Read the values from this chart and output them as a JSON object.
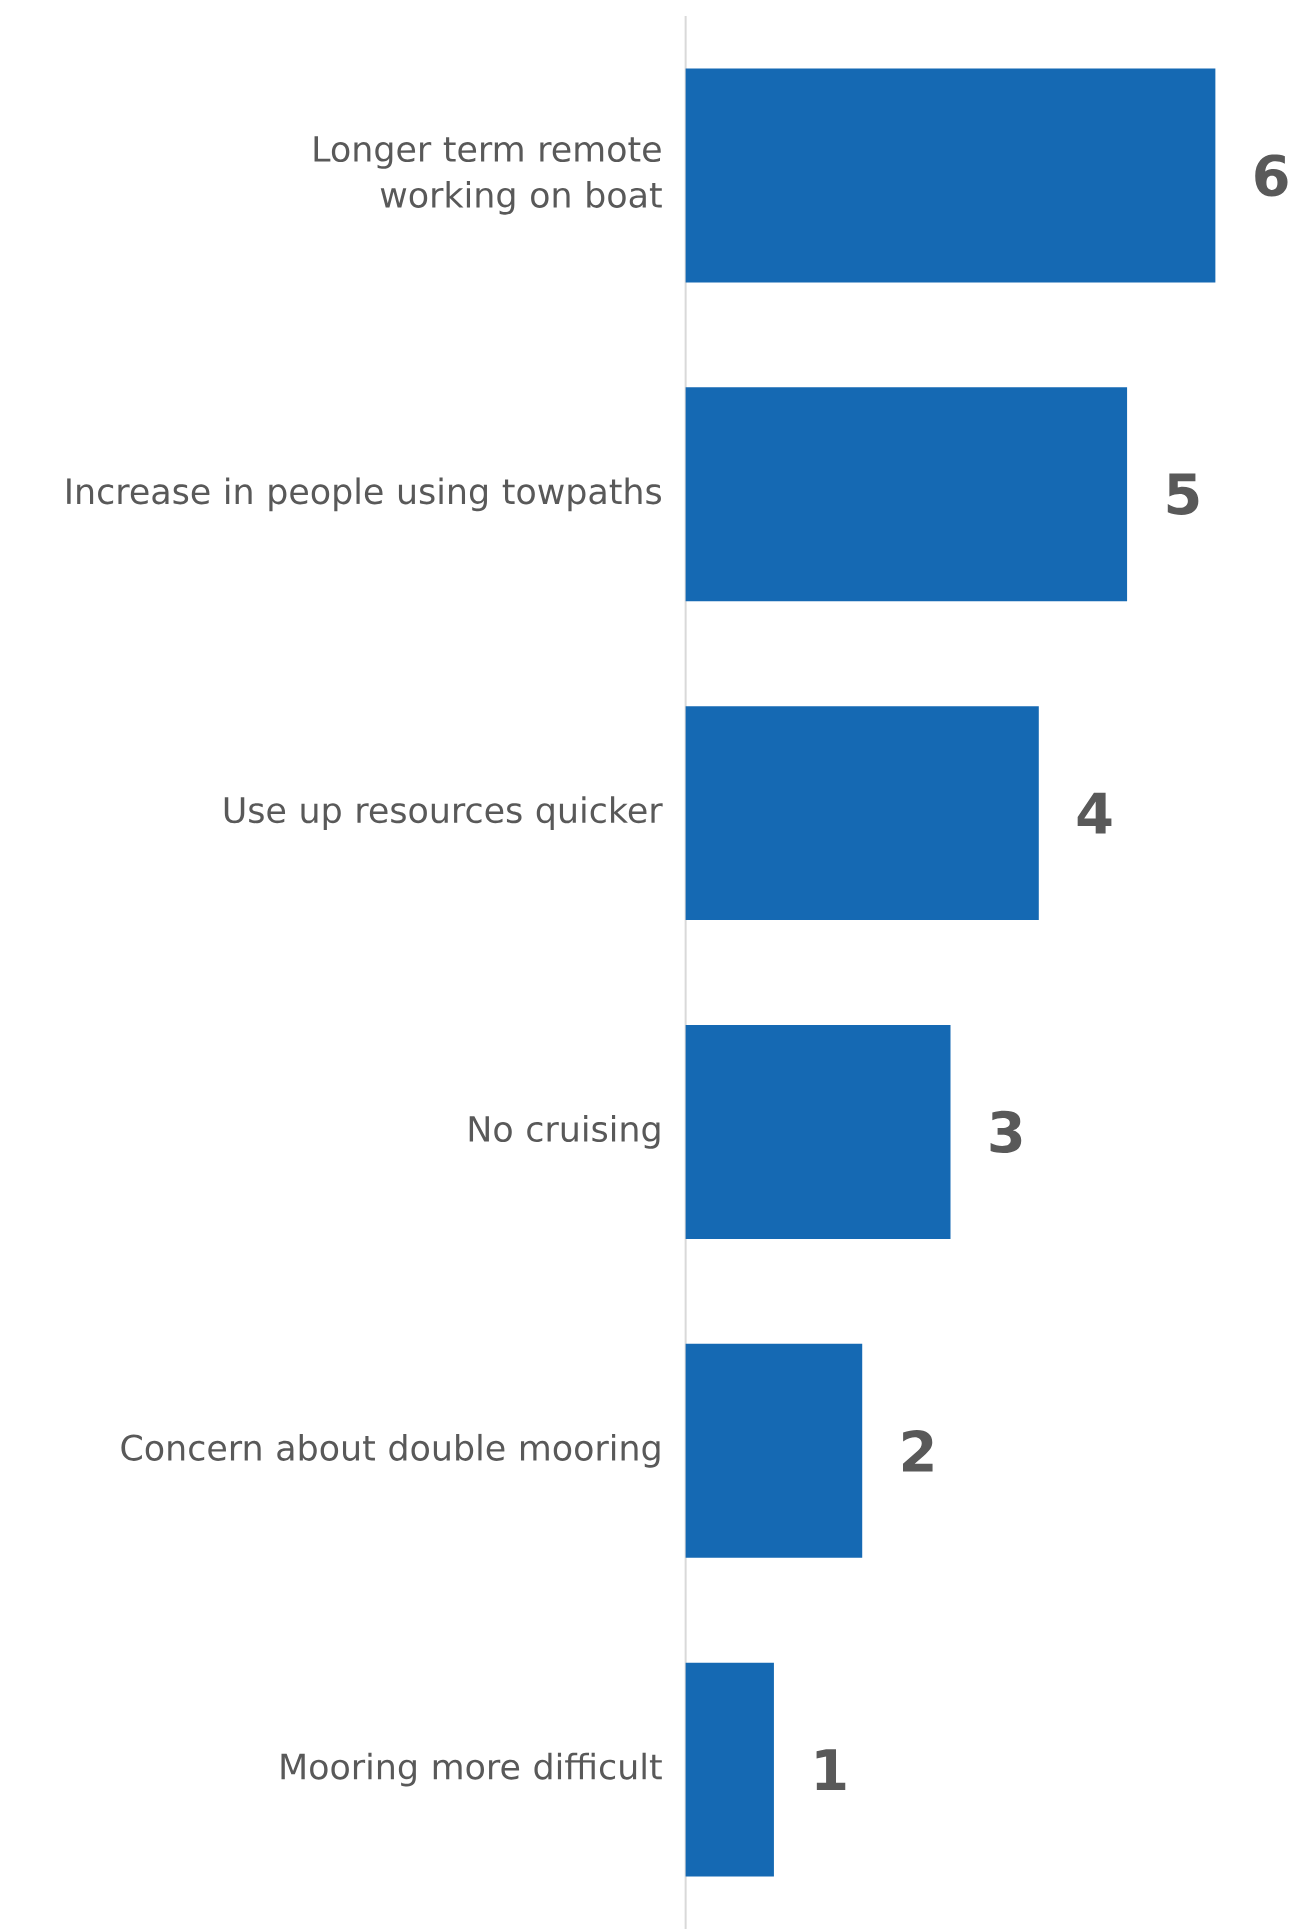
{
  "chart_data": {
    "type": "bar",
    "orientation": "horizontal",
    "categories": [
      "Longer term remote working on boat",
      "Increase in people using towpaths",
      "Use up resources quicker",
      "No cruising",
      "Concern about double mooring",
      "Mooring more difficult"
    ],
    "values": [
      6,
      5,
      4,
      3,
      2,
      1
    ],
    "color": "#1569b3",
    "data_labels": true,
    "tick_labels": "y"
  }
}
